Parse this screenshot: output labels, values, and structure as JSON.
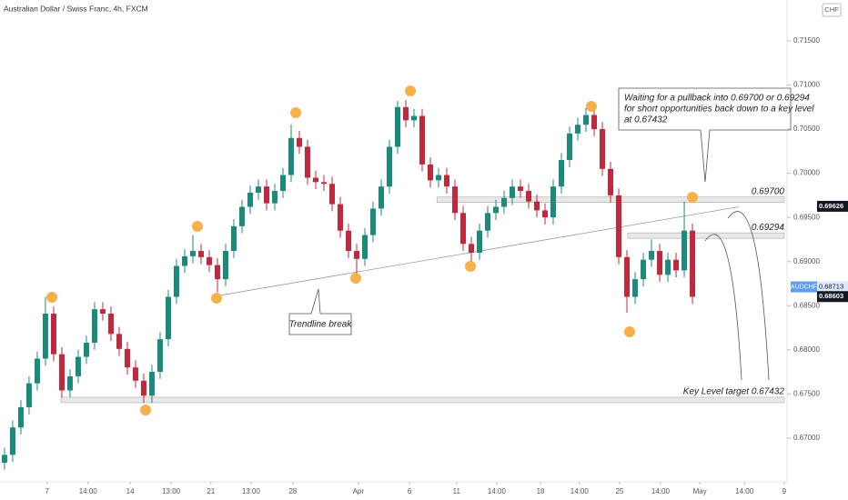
{
  "chart_data": {
    "type": "candlestick",
    "title": "Australian Dollar / Swiss Franc, 4h, FXCM",
    "currency": "CHF",
    "up_color": "#1b8a7a",
    "down_color": "#c0283d",
    "xlim": [
      -1.1,
      191.1
    ],
    "ylim": [
      0.66556,
      0.71963
    ],
    "yticks": [
      {
        "value": 0.715,
        "label": "0.71500"
      },
      {
        "value": 0.71,
        "label": "0.71000"
      },
      {
        "value": 0.705,
        "label": "0.70500"
      },
      {
        "value": 0.7,
        "label": "0.70000"
      },
      {
        "value": 0.695,
        "label": "0.69500"
      },
      {
        "value": 0.69,
        "label": "0.69000"
      },
      {
        "value": 0.685,
        "label": "0.68500"
      },
      {
        "value": 0.68,
        "label": "0.68000"
      },
      {
        "value": 0.675,
        "label": "0.67500"
      },
      {
        "value": 0.67,
        "label": "0.67000"
      }
    ],
    "xticks": [
      {
        "value": 10.4,
        "label": "7"
      },
      {
        "value": 20.4,
        "label": "14:00"
      },
      {
        "value": 30.7,
        "label": "14"
      },
      {
        "value": 40.7,
        "label": "13:00"
      },
      {
        "value": 50.4,
        "label": "21"
      },
      {
        "value": 60.2,
        "label": "13:00"
      },
      {
        "value": 70.4,
        "label": "28"
      },
      {
        "value": 86.4,
        "label": "Apr"
      },
      {
        "value": 98.9,
        "label": "6"
      },
      {
        "value": 110.4,
        "label": "11"
      },
      {
        "value": 120.2,
        "label": "14:00"
      },
      {
        "value": 130.9,
        "label": "18"
      },
      {
        "value": 140.4,
        "label": "14:00"
      },
      {
        "value": 150.2,
        "label": "25"
      },
      {
        "value": 160.2,
        "label": "14:00"
      },
      {
        "value": 169.8,
        "label": "May"
      },
      {
        "value": 180.7,
        "label": "14:00"
      },
      {
        "value": 190.4,
        "label": "9"
      }
    ],
    "candles": {
      "x": [
        0,
        2,
        4,
        6,
        8,
        10,
        12,
        14,
        16,
        18,
        20,
        22,
        24,
        26,
        28,
        30,
        32,
        34,
        36,
        38,
        40,
        42,
        44,
        46,
        48,
        50,
        52,
        54,
        56,
        58,
        60,
        62,
        64,
        66,
        68,
        70,
        72,
        74,
        76,
        78,
        80,
        82,
        84,
        86,
        88,
        90,
        92,
        94,
        96,
        98,
        100,
        102,
        104,
        106,
        108,
        110,
        112,
        114,
        116,
        118,
        120,
        122,
        124,
        126,
        128,
        130,
        132,
        134,
        136,
        138,
        140,
        142,
        144,
        146,
        148,
        150,
        152,
        154,
        156,
        158,
        160,
        162,
        164,
        166,
        168
      ],
      "open": [
        0.6672,
        0.6681,
        0.6712,
        0.6735,
        0.6762,
        0.679,
        0.6841,
        0.6795,
        0.6754,
        0.677,
        0.6792,
        0.6808,
        0.6846,
        0.6841,
        0.6818,
        0.6801,
        0.678,
        0.6765,
        0.6748,
        0.6775,
        0.6812,
        0.686,
        0.6895,
        0.6906,
        0.6912,
        0.6905,
        0.6896,
        0.688,
        0.6912,
        0.694,
        0.6962,
        0.6978,
        0.6985,
        0.6966,
        0.698,
        0.6998,
        0.704,
        0.703,
        0.6995,
        0.699,
        0.6988,
        0.6965,
        0.6935,
        0.6912,
        0.6903,
        0.693,
        0.696,
        0.6985,
        0.703,
        0.7075,
        0.706,
        0.7065,
        0.701,
        0.6992,
        0.6998,
        0.6985,
        0.6955,
        0.692,
        0.691,
        0.6935,
        0.6955,
        0.6962,
        0.6972,
        0.6985,
        0.698,
        0.6968,
        0.6958,
        0.695,
        0.6985,
        0.7015,
        0.7045,
        0.7055,
        0.7066,
        0.705,
        0.7005,
        0.6975,
        0.6905,
        0.686,
        0.688,
        0.6902,
        0.6912,
        0.6885,
        0.6902,
        0.689,
        0.6935
      ],
      "high": [
        0.6689,
        0.672,
        0.6743,
        0.677,
        0.6798,
        0.686,
        0.6849,
        0.6803,
        0.6778,
        0.68,
        0.6816,
        0.6854,
        0.6854,
        0.6849,
        0.6826,
        0.6809,
        0.6788,
        0.6773,
        0.6783,
        0.682,
        0.6868,
        0.6903,
        0.6914,
        0.693,
        0.692,
        0.6913,
        0.6904,
        0.692,
        0.6948,
        0.697,
        0.6986,
        0.6993,
        0.6993,
        0.6988,
        0.7006,
        0.7055,
        0.7048,
        0.7038,
        0.7003,
        0.6998,
        0.6996,
        0.6973,
        0.6943,
        0.692,
        0.6938,
        0.6968,
        0.6993,
        0.7038,
        0.7082,
        0.7083,
        0.7073,
        0.7073,
        0.7018,
        0.7006,
        0.7006,
        0.6993,
        0.6963,
        0.6928,
        0.6943,
        0.6963,
        0.697,
        0.698,
        0.6993,
        0.6993,
        0.6988,
        0.6976,
        0.6966,
        0.6993,
        0.7023,
        0.7053,
        0.7063,
        0.7074,
        0.7074,
        0.7058,
        0.7013,
        0.6983,
        0.6913,
        0.6888,
        0.691,
        0.6925,
        0.692,
        0.691,
        0.691,
        0.6968,
        0.6943
      ],
      "low": [
        0.6664,
        0.6673,
        0.6704,
        0.6727,
        0.6754,
        0.6782,
        0.6787,
        0.6746,
        0.6746,
        0.6762,
        0.6784,
        0.68,
        0.6833,
        0.681,
        0.6793,
        0.6772,
        0.6757,
        0.674,
        0.674,
        0.6767,
        0.6804,
        0.6852,
        0.6887,
        0.6898,
        0.6897,
        0.6888,
        0.6865,
        0.6872,
        0.6904,
        0.6932,
        0.6954,
        0.697,
        0.6958,
        0.6958,
        0.6972,
        0.699,
        0.7022,
        0.6987,
        0.6982,
        0.698,
        0.6957,
        0.6927,
        0.6904,
        0.6885,
        0.6895,
        0.6922,
        0.6952,
        0.6977,
        0.7022,
        0.7052,
        0.7052,
        0.7002,
        0.6984,
        0.6984,
        0.6977,
        0.6947,
        0.6912,
        0.6898,
        0.6902,
        0.6927,
        0.6947,
        0.6954,
        0.6964,
        0.6972,
        0.696,
        0.695,
        0.6942,
        0.6942,
        0.6977,
        0.7007,
        0.7037,
        0.7047,
        0.7042,
        0.6997,
        0.6967,
        0.6897,
        0.6842,
        0.6852,
        0.6872,
        0.6894,
        0.6877,
        0.6877,
        0.6882,
        0.6882,
        0.6852
      ],
      "close": [
        0.6681,
        0.6712,
        0.6735,
        0.6762,
        0.679,
        0.6841,
        0.6795,
        0.6754,
        0.677,
        0.6792,
        0.6808,
        0.6846,
        0.6841,
        0.6818,
        0.6801,
        0.678,
        0.6765,
        0.6748,
        0.6775,
        0.6812,
        0.686,
        0.6895,
        0.6906,
        0.6912,
        0.6905,
        0.6896,
        0.688,
        0.6912,
        0.694,
        0.6962,
        0.6978,
        0.6985,
        0.6966,
        0.698,
        0.6998,
        0.704,
        0.703,
        0.6995,
        0.699,
        0.6988,
        0.6965,
        0.6935,
        0.6912,
        0.6903,
        0.693,
        0.696,
        0.6985,
        0.703,
        0.7075,
        0.706,
        0.7065,
        0.701,
        0.6992,
        0.6998,
        0.6985,
        0.6955,
        0.692,
        0.691,
        0.6935,
        0.6955,
        0.6962,
        0.6972,
        0.6985,
        0.698,
        0.6968,
        0.6958,
        0.695,
        0.6985,
        0.7015,
        0.7045,
        0.7055,
        0.7066,
        0.705,
        0.7005,
        0.6975,
        0.6905,
        0.686,
        0.688,
        0.6902,
        0.6912,
        0.6885,
        0.6902,
        0.689,
        0.6935,
        0.686
      ]
    },
    "levels": [
      {
        "value": 0.697,
        "start": 105.6,
        "label": "0.69700"
      },
      {
        "value": 0.69294,
        "start": 152.2,
        "label": "0.69294"
      },
      {
        "value": 0.67432,
        "start": 13.8,
        "label": "Key Level target 0.67432"
      }
    ],
    "trendline": {
      "x": [
        51.8,
        179.3
      ],
      "y": [
        0.6861,
        0.6962
      ]
    },
    "price_labels": [
      {
        "value": 0.69626,
        "label": "0.69626",
        "color": "#131722"
      },
      {
        "value": 0.68713,
        "label": "0.68713",
        "symbol": "AUDCHF",
        "color": "#5b9cf6"
      },
      {
        "value": 0.68603,
        "label": "0.68603",
        "color": "#131722"
      }
    ],
    "annotations": {
      "trendline_break": "Trendline break",
      "note": [
        "Waiting for a pullback into 0.69700 or 0.69294",
        "for short opportunities back down to a key level",
        "at 0.67432"
      ]
    }
  }
}
